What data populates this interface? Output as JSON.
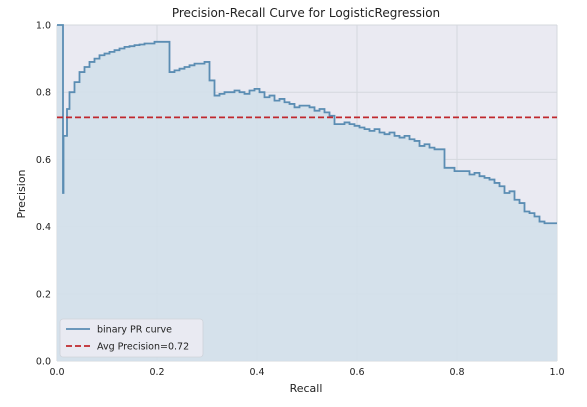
{
  "chart_data": {
    "type": "line",
    "title": "Precision-Recall Curve for LogisticRegression",
    "xlabel": "Recall",
    "ylabel": "Precision",
    "xlim": [
      0.0,
      1.0
    ],
    "ylim": [
      0.0,
      1.0
    ],
    "x_ticks": [
      0.0,
      0.2,
      0.4,
      0.6,
      0.8,
      1.0
    ],
    "y_ticks": [
      0.0,
      0.2,
      0.4,
      0.6,
      0.8,
      1.0
    ],
    "x_tick_labels": [
      "0.0",
      "0.2",
      "0.4",
      "0.6",
      "0.8",
      "1.0"
    ],
    "y_tick_labels": [
      "0.0",
      "0.2",
      "0.4",
      "0.6",
      "0.8",
      "1.0"
    ],
    "grid": true,
    "legend_position": "lower-left",
    "colors": {
      "curve": "#5b8db3",
      "fill": "#d3e0ea",
      "avg_line": "#c0282d",
      "grid": "#d4d8de",
      "plot_bg": "#eaeaf2"
    },
    "series": [
      {
        "name": "binary PR curve",
        "style": "step",
        "recall": [
          0.0,
          0.005,
          0.012,
          0.012,
          0.013,
          0.014,
          0.016,
          0.02,
          0.025,
          0.035,
          0.045,
          0.055,
          0.065,
          0.075,
          0.085,
          0.095,
          0.105,
          0.115,
          0.125,
          0.135,
          0.145,
          0.155,
          0.165,
          0.175,
          0.185,
          0.195,
          0.205,
          0.225,
          0.235,
          0.245,
          0.255,
          0.265,
          0.275,
          0.295,
          0.305,
          0.315,
          0.325,
          0.335,
          0.355,
          0.365,
          0.375,
          0.385,
          0.395,
          0.405,
          0.415,
          0.425,
          0.435,
          0.445,
          0.455,
          0.465,
          0.475,
          0.485,
          0.495,
          0.505,
          0.515,
          0.525,
          0.535,
          0.545,
          0.555,
          0.565,
          0.575,
          0.585,
          0.595,
          0.605,
          0.615,
          0.625,
          0.635,
          0.645,
          0.655,
          0.665,
          0.675,
          0.685,
          0.695,
          0.705,
          0.715,
          0.725,
          0.735,
          0.745,
          0.755,
          0.765,
          0.775,
          0.785,
          0.795,
          0.805,
          0.815,
          0.825,
          0.835,
          0.845,
          0.855,
          0.865,
          0.875,
          0.885,
          0.895,
          0.905,
          0.915,
          0.925,
          0.935,
          0.945,
          0.955,
          0.965,
          0.975,
          0.985,
          1.0
        ],
        "precision": [
          1.0,
          1.0,
          1.0,
          0.5,
          0.67,
          0.67,
          0.67,
          0.75,
          0.8,
          0.83,
          0.86,
          0.875,
          0.89,
          0.9,
          0.91,
          0.915,
          0.92,
          0.925,
          0.93,
          0.935,
          0.937,
          0.94,
          0.942,
          0.945,
          0.945,
          0.95,
          0.95,
          0.86,
          0.865,
          0.87,
          0.875,
          0.88,
          0.885,
          0.89,
          0.835,
          0.79,
          0.795,
          0.8,
          0.805,
          0.8,
          0.795,
          0.805,
          0.81,
          0.8,
          0.785,
          0.79,
          0.775,
          0.78,
          0.77,
          0.765,
          0.755,
          0.76,
          0.76,
          0.755,
          0.745,
          0.75,
          0.74,
          0.73,
          0.705,
          0.705,
          0.71,
          0.705,
          0.7,
          0.695,
          0.69,
          0.685,
          0.69,
          0.68,
          0.675,
          0.68,
          0.67,
          0.665,
          0.67,
          0.66,
          0.655,
          0.64,
          0.645,
          0.635,
          0.63,
          0.63,
          0.575,
          0.575,
          0.565,
          0.565,
          0.565,
          0.555,
          0.56,
          0.55,
          0.545,
          0.54,
          0.53,
          0.52,
          0.5,
          0.505,
          0.48,
          0.47,
          0.445,
          0.44,
          0.43,
          0.415,
          0.41,
          0.41,
          0.41
        ]
      }
    ],
    "avg_precision": {
      "name": "Avg Precision=0.72",
      "value": 0.725
    },
    "legend": [
      "binary PR curve",
      "Avg Precision=0.72"
    ]
  }
}
